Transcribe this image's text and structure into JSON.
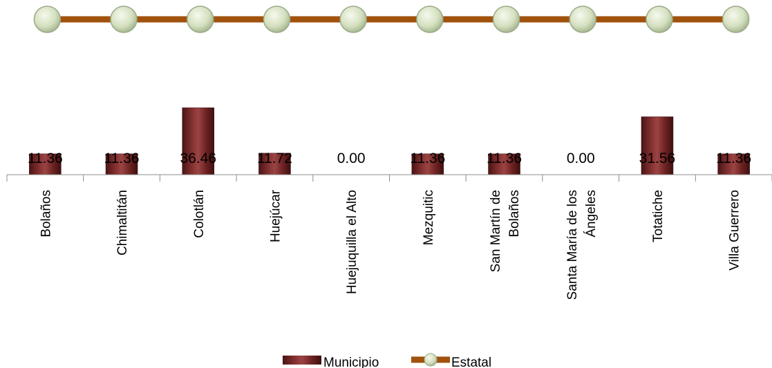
{
  "chart_data": {
    "type": "bar",
    "categories": [
      "Bolaños",
      "Chimaltitán",
      "Colotlán",
      "Huejúcar",
      "Huejuquilla el Alto",
      "Mezquitic",
      "San Martín de Bolaños",
      "Santa María de los Ángeles",
      "Totatiche",
      "Villa Guerrero"
    ],
    "category_label_lines": [
      [
        "Bolaños"
      ],
      [
        "Chimaltitán"
      ],
      [
        "Colotlán"
      ],
      [
        "Huejúcar"
      ],
      [
        "Huejuquilla el Alto"
      ],
      [
        "Mezquitic"
      ],
      [
        "San Martín de",
        "Bolaños"
      ],
      [
        "Santa María de los",
        "Ángeles"
      ],
      [
        "Totatiche"
      ],
      [
        "Villa Guerrero"
      ]
    ],
    "series": [
      {
        "name": "Municipio",
        "type": "bar",
        "values": [
          11.36,
          11.36,
          36.46,
          11.72,
          0.0,
          11.36,
          11.36,
          0.0,
          31.56,
          11.36
        ],
        "color": "#7b2a2a"
      },
      {
        "name": "Estatal",
        "type": "line",
        "color": "#a0520d",
        "marker_color": "#cfdcb8"
      }
    ],
    "data_labels": [
      "11.36",
      "11.36",
      "36.46",
      "11.72",
      "0.00",
      "11.36",
      "11.36",
      "0.00",
      "31.56",
      "11.36"
    ],
    "legend": {
      "position": "bottom",
      "items": [
        "Municipio",
        "Estatal"
      ]
    },
    "grid": false
  }
}
